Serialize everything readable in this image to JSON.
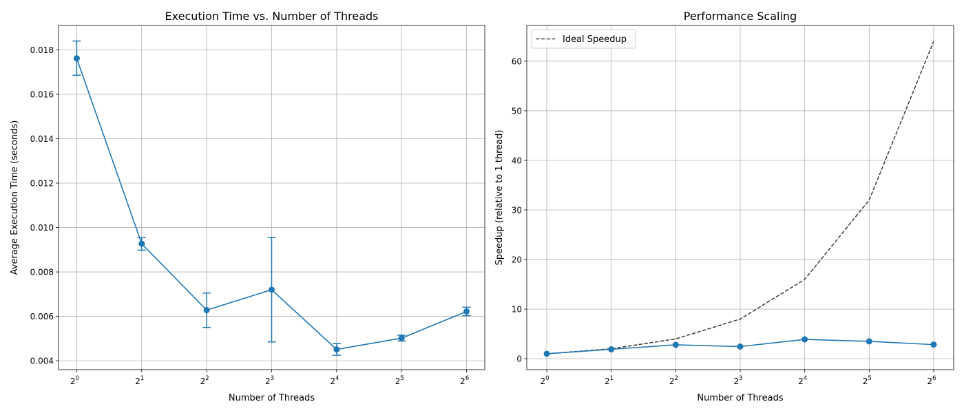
{
  "chart_data": [
    {
      "type": "line",
      "title": "Execution Time vs. Number of Threads",
      "xlabel": "Number of Threads",
      "ylabel": "Average Execution Time (seconds)",
      "x_scale": "log2",
      "x": [
        1,
        2,
        4,
        8,
        16,
        32,
        64
      ],
      "x_tick_labels": [
        {
          "base": "2",
          "exp": "0"
        },
        {
          "base": "2",
          "exp": "1"
        },
        {
          "base": "2",
          "exp": "2"
        },
        {
          "base": "2",
          "exp": "3"
        },
        {
          "base": "2",
          "exp": "4"
        },
        {
          "base": "2",
          "exp": "5"
        },
        {
          "base": "2",
          "exp": "6"
        }
      ],
      "ylim": [
        0.0036,
        0.0191
      ],
      "y_ticks": [
        "0.004",
        "0.006",
        "0.008",
        "0.010",
        "0.012",
        "0.014",
        "0.016",
        "0.018"
      ],
      "grid": true,
      "series": [
        {
          "color": "#1f77b4",
          "marker": "circle",
          "values": [
            0.01762,
            0.00927,
            0.00628,
            0.0072,
            0.00451,
            0.00502,
            0.00622
          ],
          "error_low": [
            0.01686,
            0.00898,
            0.0055,
            0.00485,
            0.00425,
            0.00489,
            0.00603
          ],
          "error_high": [
            0.0184,
            0.00955,
            0.00705,
            0.00955,
            0.00477,
            0.00515,
            0.00641
          ]
        }
      ]
    },
    {
      "type": "line",
      "title": "Performance Scaling",
      "xlabel": "Number of Threads",
      "ylabel": "Speedup (relative to 1 thread)",
      "x_scale": "log2",
      "x": [
        1,
        2,
        4,
        8,
        16,
        32,
        64
      ],
      "x_tick_labels": [
        {
          "base": "2",
          "exp": "0"
        },
        {
          "base": "2",
          "exp": "1"
        },
        {
          "base": "2",
          "exp": "2"
        },
        {
          "base": "2",
          "exp": "3"
        },
        {
          "base": "2",
          "exp": "4"
        },
        {
          "base": "2",
          "exp": "5"
        },
        {
          "base": "2",
          "exp": "6"
        }
      ],
      "ylim": [
        -2.2,
        67.2
      ],
      "y_ticks": [
        "0",
        "10",
        "20",
        "30",
        "40",
        "50",
        "60"
      ],
      "grid": true,
      "legend": "top-left",
      "series": [
        {
          "name": "",
          "color": "#1f77b4",
          "marker": "circle",
          "dash": "solid",
          "values": [
            1.0,
            1.9,
            2.8,
            2.45,
            3.9,
            3.5,
            2.85
          ]
        },
        {
          "name": "Ideal Speedup",
          "color": "#444444",
          "marker": "none",
          "dash": "dashed",
          "values": [
            1,
            2,
            4,
            8,
            16,
            32,
            64
          ]
        }
      ]
    }
  ]
}
